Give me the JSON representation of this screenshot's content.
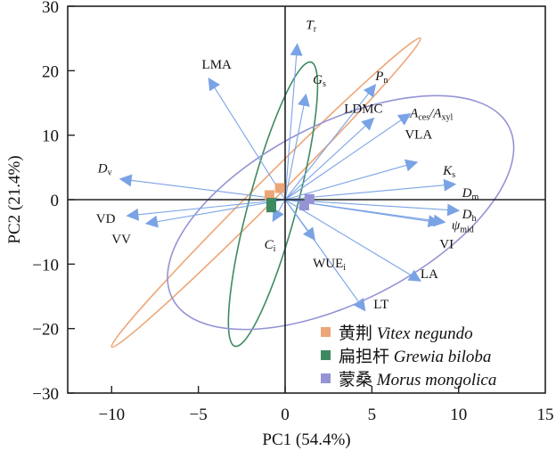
{
  "chart_data": {
    "type": "scatter",
    "subtype": "pca-biplot",
    "xlabel": "PC1 (54.4%)",
    "ylabel": "PC2 (21.4%)",
    "xlim": [
      -12.5,
      15
    ],
    "ylim": [
      -30,
      30
    ],
    "xticks": [
      -10,
      -5,
      0,
      5,
      10,
      15
    ],
    "yticks": [
      -30,
      -20,
      -10,
      0,
      10,
      20,
      30
    ],
    "xtick_labels": [
      "−10",
      "−5",
      "0",
      "5",
      "10",
      "15"
    ],
    "ytick_labels": [
      "−30",
      "−20",
      "−10",
      "0",
      "10",
      "20",
      "30"
    ],
    "origin_lines": true,
    "grid": false,
    "arrow_color": "#7aa3e5",
    "loadings": [
      {
        "name": "T_r",
        "main": "T",
        "sub": "r",
        "italic": true,
        "x": 0.7,
        "y": 24.1,
        "lx": 1.2,
        "ly": 26.5
      },
      {
        "name": "LMA",
        "main": "LMA",
        "sub": "",
        "italic": false,
        "x": -4.4,
        "y": 18.8,
        "lx": -4.8,
        "ly": 20.3
      },
      {
        "name": "G_s",
        "main": "G",
        "sub": "s",
        "italic": true,
        "x": 1.2,
        "y": 16.3,
        "lx": 1.6,
        "ly": 18.0
      },
      {
        "name": "P_n",
        "main": "P",
        "sub": "n",
        "italic": true,
        "x": 5.2,
        "y": 17.8,
        "lx": 5.2,
        "ly": 18.5
      },
      {
        "name": "LDMC",
        "main": "LDMC",
        "sub": "",
        "italic": false,
        "x": 5.1,
        "y": 12.6,
        "lx": 3.4,
        "ly": 13.5
      },
      {
        "name": "A_ces/A_xyl",
        "main": "A",
        "sub": "ces",
        "tail_main": "/A",
        "tail_sub": "xyl",
        "italic": true,
        "x": 7.2,
        "y": 13.3,
        "lx": 7.2,
        "ly": 12.8
      },
      {
        "name": "VLA",
        "main": "VLA",
        "sub": "",
        "italic": false,
        "x": 7.6,
        "y": 5.8,
        "lx": 6.9,
        "ly": 9.5
      },
      {
        "name": "K_s",
        "main": "K",
        "sub": "s",
        "italic": true,
        "x": 9.8,
        "y": 2.4,
        "lx": 9.1,
        "ly": 3.9
      },
      {
        "name": "D_m",
        "main": "D",
        "sub": "m",
        "italic": true,
        "x": 9.8,
        "y": 2.4,
        "lx": 10.2,
        "ly": 0.4
      },
      {
        "name": "D_h",
        "main": "D",
        "sub": "h",
        "italic": true,
        "x": 10.0,
        "y": -1.7,
        "lx": 10.2,
        "ly": -2.9
      },
      {
        "name": "psi_mid",
        "main": "ψ",
        "sub": "mid",
        "italic": true,
        "x": 9.2,
        "y": -3.5,
        "lx": 9.6,
        "ly": -4.6
      },
      {
        "name": "VI",
        "main": "VI",
        "sub": "",
        "italic": false,
        "x": 8.9,
        "y": -3.6,
        "lx": 8.9,
        "ly": -7.5
      },
      {
        "name": "LA",
        "main": "LA",
        "sub": "",
        "italic": false,
        "x": 7.8,
        "y": -12.6,
        "lx": 7.8,
        "ly": -12.2
      },
      {
        "name": "LT",
        "main": "LT",
        "sub": "",
        "italic": false,
        "x": 4.6,
        "y": -17.2,
        "lx": 5.1,
        "ly": -16.9
      },
      {
        "name": "WUE_i",
        "main": "WUE",
        "sub": "i",
        "italic": false,
        "x": 1.7,
        "y": -6.2,
        "lx": 1.6,
        "ly": -10.5
      },
      {
        "name": "C_i",
        "main": "C",
        "sub": "i",
        "italic": true,
        "x": -0.7,
        "y": -3.3,
        "lx": -1.2,
        "ly": -7.6
      },
      {
        "name": "D_v",
        "main": "D",
        "sub": "v",
        "italic": true,
        "x": -9.5,
        "y": 3.2,
        "lx": -10.8,
        "ly": 4.2
      },
      {
        "name": "VD",
        "main": "VD",
        "sub": "",
        "italic": false,
        "x": -9.1,
        "y": -2.5,
        "lx": -10.9,
        "ly": -3.6
      },
      {
        "name": "VV",
        "main": "VV",
        "sub": "",
        "italic": false,
        "x": -8.0,
        "y": -3.7,
        "lx": -10.0,
        "ly": -6.8
      }
    ],
    "groups": [
      {
        "name": "Vitex negundo",
        "cn": "黄荆",
        "color": "#eda677",
        "centroids": [
          {
            "x": -0.9,
            "y": 0.7
          },
          {
            "x": -0.3,
            "y": 1.8
          }
        ],
        "ellipse": {
          "cx": -1.1,
          "cy": 1.1,
          "rx_data": 12.2,
          "ry_data": 24.2,
          "angle_deg": 0,
          "screen_angle": -45,
          "len": 245,
          "wid": 12
        }
      },
      {
        "name": "Grewia biloba",
        "cn": "扁担杆",
        "color": "#3d8a61",
        "centroids": [
          {
            "x": -0.8,
            "y": -1.2
          },
          {
            "x": -0.8,
            "y": -0.5
          }
        ],
        "ellipse": {
          "cx": -0.7,
          "cy": -0.7,
          "screen_angle": -75,
          "len": 165,
          "wid": 27
        }
      },
      {
        "name": "Morus mongolica",
        "cn": "蒙桑",
        "color": "#9494d4",
        "centroids": [
          {
            "x": 1.4,
            "y": 0.1
          },
          {
            "x": 1.1,
            "y": -0.9
          }
        ],
        "ellipse": {
          "cx": 3.2,
          "cy": -2.0,
          "screen_angle": -27,
          "len": 212,
          "wid": 100
        }
      }
    ]
  }
}
